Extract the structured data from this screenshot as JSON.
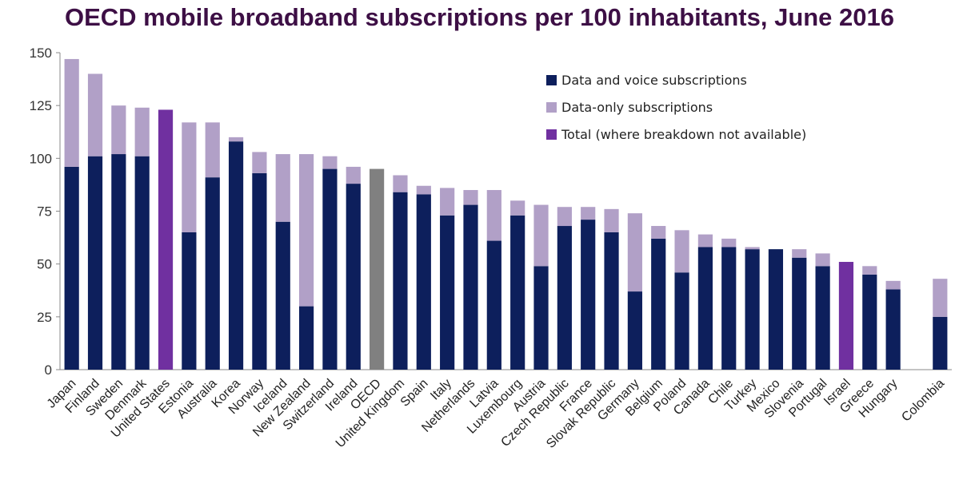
{
  "chart_data": {
    "type": "bar",
    "stacked": true,
    "title": "OECD mobile broadband subscriptions per 100 inhabitants, June 2016",
    "xlabel": "",
    "ylabel": "",
    "ylim": [
      0,
      150
    ],
    "yticks": [
      0,
      25,
      50,
      75,
      100,
      125,
      150
    ],
    "grid": false,
    "legend_position": "top-right",
    "categories": [
      "Japan",
      "Finland",
      "Sweden",
      "Denmark",
      "United States",
      "Estonia",
      "Australia",
      "Korea",
      "Norway",
      "Iceland",
      "New Zealand",
      "Switzerland",
      "Ireland",
      "OECD",
      "United Kingdom",
      "Spain",
      "Italy",
      "Netherlands",
      "Latvia",
      "Luxembourg",
      "Austria",
      "Czech Republic",
      "France",
      "Slovak Republic",
      "Germany",
      "Belgium",
      "Poland",
      "Canada",
      "Chile",
      "Turkey",
      "Mexico",
      "Slovenia",
      "Portugal",
      "Israel",
      "Greece",
      "Hungary",
      "",
      "Colombia"
    ],
    "series": [
      {
        "name": "Data and voice subscriptions",
        "color": "#0d1f5c",
        "values": [
          96,
          101,
          102,
          101,
          null,
          65,
          91,
          108,
          93,
          70,
          30,
          95,
          88,
          null,
          84,
          83,
          73,
          78,
          61,
          73,
          49,
          68,
          71,
          65,
          37,
          62,
          46,
          58,
          58,
          57,
          57,
          53,
          49,
          null,
          45,
          38,
          null,
          25
        ]
      },
      {
        "name": "Data-only subscriptions",
        "color": "#b1a0c7",
        "values": [
          51,
          39,
          23,
          23,
          null,
          52,
          26,
          2,
          10,
          32,
          72,
          6,
          8,
          null,
          8,
          4,
          13,
          7,
          24,
          7,
          29,
          9,
          6,
          11,
          37,
          6,
          20,
          6,
          4,
          1,
          0,
          4,
          6,
          null,
          4,
          4,
          null,
          18
        ]
      },
      {
        "name": "Total (where breakdown not available)",
        "color": "#7030a0",
        "values": [
          null,
          null,
          null,
          null,
          123,
          null,
          null,
          null,
          null,
          null,
          null,
          null,
          null,
          null,
          null,
          null,
          null,
          null,
          null,
          null,
          null,
          null,
          null,
          null,
          null,
          null,
          null,
          null,
          null,
          null,
          null,
          null,
          null,
          51,
          null,
          null,
          null,
          null
        ]
      },
      {
        "name": "OECD",
        "color": "#808080",
        "values": [
          null,
          null,
          null,
          null,
          null,
          null,
          null,
          null,
          null,
          null,
          null,
          null,
          null,
          95,
          null,
          null,
          null,
          null,
          null,
          null,
          null,
          null,
          null,
          null,
          null,
          null,
          null,
          null,
          null,
          null,
          null,
          null,
          null,
          null,
          null,
          null,
          null,
          null
        ]
      }
    ],
    "legend_entries": [
      {
        "label": "Data and voice subscriptions",
        "color": "#0d1f5c"
      },
      {
        "label": "Data-only subscriptions",
        "color": "#b1a0c7"
      },
      {
        "label": "Total (where breakdown not available)",
        "color": "#7030a0"
      }
    ]
  }
}
